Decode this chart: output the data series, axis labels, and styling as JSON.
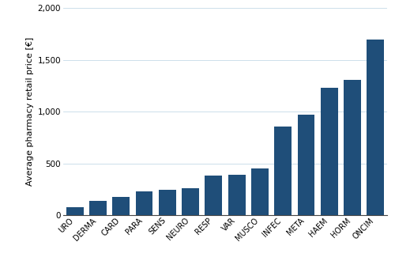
{
  "categories": [
    "URO",
    "DERMA",
    "CARD",
    "PARA",
    "SENS",
    "NEURO",
    "RESP",
    "VAR",
    "MUSCO",
    "INFEC",
    "META",
    "HAEM",
    "HORM",
    "ONCIM"
  ],
  "values": [
    80,
    140,
    180,
    230,
    245,
    258,
    385,
    395,
    455,
    855,
    970,
    1230,
    1310,
    1700
  ],
  "bar_color": "#1f4e79",
  "ylabel": "Average pharmacy retail price [€]",
  "ylim": [
    0,
    2000
  ],
  "yticks": [
    0,
    500,
    1000,
    1500,
    2000
  ],
  "ytick_labels": [
    "0",
    "500",
    "1,000",
    "1,500",
    "2,000"
  ],
  "grid_color": "#c5d9e8",
  "background_color": "#ffffff",
  "bar_edge_color": "none"
}
